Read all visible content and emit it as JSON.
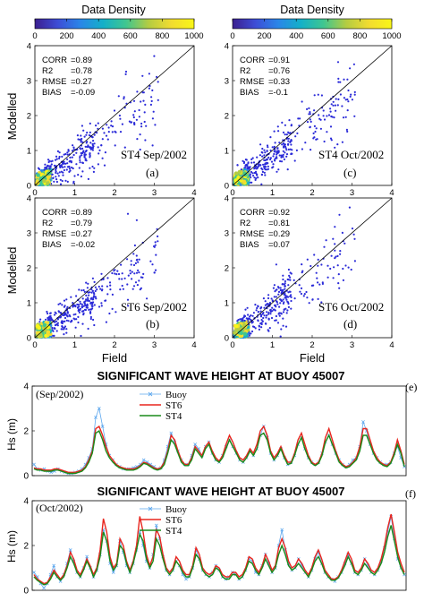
{
  "colorbars": [
    {
      "title": "Data Density",
      "ticks": [
        "0",
        "200",
        "400",
        "600",
        "800",
        "1000"
      ]
    },
    {
      "title": "Data Density",
      "ticks": [
        "0",
        "200",
        "400",
        "600",
        "800",
        "1000"
      ]
    }
  ],
  "colormap": [
    "#3b1f8f",
    "#3d4dd6",
    "#2a86e8",
    "#14b0c8",
    "#3fc690",
    "#b4cc42",
    "#f2dc30",
    "#f9f618"
  ],
  "point_color": "#2b2bd8",
  "colors": {
    "buoy": "#5ea8ee",
    "st6": "#e8261e",
    "st4": "#1a8a1a",
    "axis": "#000000"
  },
  "scatter_axis": {
    "ylabel": "Modelled",
    "xlabel": "Field",
    "ticks": [
      "0",
      "1",
      "2",
      "3",
      "4"
    ],
    "range": [
      0,
      4
    ]
  },
  "scatter_panels": [
    {
      "label": "ST4  Sep/2002",
      "letter": "(a)",
      "stats": [
        [
          "CORR",
          "=0.89"
        ],
        [
          "R2",
          "=0.78"
        ],
        [
          "RMSE",
          "=0.27"
        ],
        [
          "BIAS",
          "=-0.09"
        ]
      ]
    },
    {
      "label": "ST4  Oct/2002",
      "letter": "(c)",
      "stats": [
        [
          "CORR",
          "=0.91"
        ],
        [
          "R2",
          "=0.76"
        ],
        [
          "RMSE",
          "=0.33"
        ],
        [
          "BIAS",
          "=-0.1"
        ]
      ]
    },
    {
      "label": "ST6 Sep/2002",
      "letter": "(b)",
      "stats": [
        [
          "CORR",
          "=0.89"
        ],
        [
          "R2",
          "=0.79"
        ],
        [
          "RMSE",
          "=0.27"
        ],
        [
          "BIAS",
          "=-0.02"
        ]
      ]
    },
    {
      "label": "ST6 Oct/2002",
      "letter": "(d)",
      "stats": [
        [
          "CORR",
          "=0.92"
        ],
        [
          "R2",
          "=0.81"
        ],
        [
          "RMSE",
          "=0.29"
        ],
        [
          "BIAS",
          "=0.07"
        ]
      ]
    }
  ],
  "timeseries_panels": [
    {
      "title": "SIGNIFICANT WAVE HEIGHT AT BUOY 45007",
      "period": "(Sep/2002)",
      "letter": "(e)",
      "ylabel": "Hs (m)",
      "yticks": [
        "0",
        "2",
        "4"
      ]
    },
    {
      "title": "SIGNIFICANT WAVE HEIGHT AT BUOY 45007",
      "period": "(Oct/2002)",
      "letter": "(f)",
      "ylabel": "Hs (m)",
      "yticks": [
        "0",
        "2",
        "4"
      ]
    }
  ],
  "legend": {
    "buoy": "Buoy",
    "st6": "ST6",
    "st4": "ST4"
  },
  "chart_data": [
    {
      "type": "scatter",
      "title": "ST4 Sep/2002",
      "xlabel": "",
      "ylabel": "Modelled",
      "xlim": [
        0,
        4
      ],
      "ylim": [
        0,
        4
      ],
      "reference_line": "y=x",
      "stats": {
        "CORR": 0.89,
        "R2": 0.78,
        "RMSE": 0.27,
        "BIAS": -0.09
      }
    },
    {
      "type": "scatter",
      "title": "ST4 Oct/2002",
      "xlabel": "",
      "ylabel": "",
      "xlim": [
        0,
        4
      ],
      "ylim": [
        0,
        4
      ],
      "reference_line": "y=x",
      "stats": {
        "CORR": 0.91,
        "R2": 0.76,
        "RMSE": 0.33,
        "BIAS": -0.1
      }
    },
    {
      "type": "scatter",
      "title": "ST6 Sep/2002",
      "xlabel": "Field",
      "ylabel": "Modelled",
      "xlim": [
        0,
        4
      ],
      "ylim": [
        0,
        4
      ],
      "reference_line": "y=x",
      "stats": {
        "CORR": 0.89,
        "R2": 0.79,
        "RMSE": 0.27,
        "BIAS": -0.02
      }
    },
    {
      "type": "scatter",
      "title": "ST6 Oct/2002",
      "xlabel": "Field",
      "ylabel": "",
      "xlim": [
        0,
        4
      ],
      "ylim": [
        0,
        4
      ],
      "reference_line": "y=x",
      "stats": {
        "CORR": 0.92,
        "R2": 0.81,
        "RMSE": 0.29,
        "BIAS": 0.07
      }
    },
    {
      "type": "line",
      "title": "SIGNIFICANT WAVE HEIGHT AT BUOY 45007",
      "subtitle": "(Sep/2002)",
      "ylabel": "Hs (m)",
      "ylim": [
        0,
        4
      ],
      "series": [
        {
          "name": "Buoy",
          "values": [
            0.5,
            0.3,
            0.25,
            0.3,
            0.2,
            0.15,
            0.2,
            0.3,
            0.2,
            0.15,
            0.1,
            0.1,
            0.15,
            0.2,
            0.3,
            0.5,
            0.8,
            1.2,
            2.6,
            3.0,
            2.2,
            1.4,
            0.9,
            0.7,
            0.5,
            0.4,
            0.3,
            0.3,
            0.3,
            0.35,
            0.4,
            0.5,
            0.7,
            0.6,
            0.5,
            0.4,
            0.3,
            0.35,
            0.7,
            1.3,
            1.9,
            1.5,
            1.1,
            0.7,
            0.5,
            0.5,
            0.9,
            1.4,
            1.2,
            0.9,
            1.3,
            1.5,
            1.0,
            0.7,
            0.6,
            0.9,
            1.3,
            1.6,
            1.3,
            1.0,
            0.7,
            0.6,
            0.8,
            1.1,
            0.9,
            1.2,
            1.8,
            2.2,
            1.7,
            1.0,
            0.7,
            0.9,
            1.2,
            0.8,
            0.5,
            0.6,
            0.9,
            1.4,
            1.7,
            1.2,
            0.8,
            0.6,
            0.5,
            0.6,
            1.0,
            1.5,
            1.8,
            1.4,
            1.0,
            0.7,
            0.5,
            0.4,
            0.5,
            0.7,
            0.8,
            1.3,
            2.4,
            2.0,
            1.4,
            1.0,
            0.8,
            0.6,
            0.5,
            0.5,
            0.6,
            1.0,
            1.3,
            0.8,
            0.4
          ]
        },
        {
          "name": "ST6",
          "values": [
            0.35,
            0.3,
            0.3,
            0.25,
            0.25,
            0.25,
            0.3,
            0.3,
            0.25,
            0.2,
            0.15,
            0.15,
            0.15,
            0.2,
            0.25,
            0.4,
            0.7,
            1.1,
            2.1,
            2.2,
            1.8,
            1.3,
            0.9,
            0.7,
            0.5,
            0.4,
            0.35,
            0.3,
            0.3,
            0.3,
            0.35,
            0.45,
            0.6,
            0.55,
            0.45,
            0.35,
            0.3,
            0.35,
            0.6,
            1.1,
            1.8,
            1.6,
            1.1,
            0.7,
            0.5,
            0.5,
            0.8,
            1.3,
            1.1,
            0.9,
            1.3,
            1.5,
            1.1,
            0.8,
            0.65,
            0.9,
            1.4,
            1.8,
            1.5,
            1.1,
            0.8,
            0.7,
            0.9,
            1.2,
            1.0,
            1.4,
            2.0,
            2.2,
            1.8,
            1.1,
            0.8,
            1.0,
            1.3,
            0.9,
            0.6,
            0.6,
            1.0,
            1.6,
            1.9,
            1.4,
            0.9,
            0.6,
            0.5,
            0.6,
            1.0,
            1.7,
            2.1,
            1.6,
            1.1,
            0.7,
            0.5,
            0.4,
            0.45,
            0.6,
            0.8,
            1.3,
            2.1,
            2.1,
            1.6,
            1.1,
            0.8,
            0.6,
            0.5,
            0.45,
            0.6,
            1.0,
            1.6,
            1.1,
            0.5
          ]
        },
        {
          "name": "ST4",
          "values": [
            0.3,
            0.25,
            0.25,
            0.2,
            0.2,
            0.2,
            0.25,
            0.25,
            0.2,
            0.15,
            0.1,
            0.1,
            0.1,
            0.15,
            0.2,
            0.35,
            0.6,
            1.0,
            1.9,
            2.0,
            1.6,
            1.1,
            0.8,
            0.6,
            0.45,
            0.35,
            0.3,
            0.25,
            0.25,
            0.25,
            0.3,
            0.4,
            0.55,
            0.5,
            0.4,
            0.3,
            0.25,
            0.3,
            0.5,
            1.0,
            1.6,
            1.4,
            1.0,
            0.6,
            0.45,
            0.45,
            0.7,
            1.2,
            1.0,
            0.8,
            1.2,
            1.4,
            1.0,
            0.7,
            0.6,
            0.8,
            1.2,
            1.6,
            1.3,
            1.0,
            0.7,
            0.6,
            0.8,
            1.1,
            0.9,
            1.2,
            1.8,
            1.9,
            1.6,
            1.0,
            0.7,
            0.9,
            1.2,
            0.8,
            0.5,
            0.55,
            0.9,
            1.4,
            1.7,
            1.2,
            0.8,
            0.55,
            0.45,
            0.55,
            0.9,
            1.5,
            1.8,
            1.4,
            1.0,
            0.6,
            0.45,
            0.35,
            0.4,
            0.55,
            0.7,
            1.1,
            1.8,
            1.8,
            1.4,
            1.0,
            0.7,
            0.55,
            0.45,
            0.4,
            0.55,
            0.9,
            1.4,
            1.0,
            0.4
          ]
        }
      ]
    },
    {
      "type": "line",
      "title": "SIGNIFICANT WAVE HEIGHT AT BUOY 45007",
      "subtitle": "(Oct/2002)",
      "ylabel": "Hs (m)",
      "ylim": [
        0,
        4
      ],
      "series": [
        {
          "name": "Buoy",
          "values": [
            0.8,
            0.6,
            0.3,
            0.1,
            0.3,
            0.7,
            1.1,
            0.6,
            0.4,
            0.7,
            1.2,
            1.8,
            1.3,
            0.8,
            0.6,
            1.0,
            1.5,
            1.0,
            0.6,
            0.9,
            1.6,
            2.7,
            2.2,
            1.2,
            0.8,
            1.1,
            2.2,
            1.7,
            1.1,
            0.8,
            1.2,
            1.8,
            2.6,
            2.0,
            1.3,
            1.0,
            1.6,
            2.9,
            2.3,
            1.5,
            0.9,
            0.7,
            0.9,
            1.3,
            1.1,
            0.7,
            0.5,
            0.6,
            1.0,
            1.8,
            1.4,
            0.9,
            0.7,
            0.6,
            0.8,
            1.1,
            0.9,
            0.6,
            0.5,
            0.6,
            0.8,
            0.7,
            0.5,
            0.6,
            0.9,
            1.4,
            1.3,
            0.8,
            0.7,
            1.1,
            1.6,
            1.2,
            0.8,
            1.0,
            2.0,
            2.7,
            1.8,
            1.2,
            0.9,
            1.0,
            1.4,
            1.1,
            0.8,
            0.6,
            0.9,
            1.4,
            1.7,
            1.2,
            0.8,
            0.6,
            0.5,
            0.4,
            0.6,
            0.8,
            1.2,
            1.6,
            1.2,
            0.8,
            0.7,
            0.9,
            1.4,
            1.1,
            0.8,
            0.7,
            0.9,
            1.3,
            1.9,
            2.6,
            3.3,
            2.3,
            1.4,
            1.0,
            0.7
          ]
        },
        {
          "name": "ST6",
          "values": [
            0.7,
            0.5,
            0.4,
            0.3,
            0.35,
            0.6,
            0.9,
            0.7,
            0.5,
            0.7,
            1.1,
            1.7,
            1.4,
            0.9,
            0.7,
            1.0,
            1.4,
            1.1,
            0.7,
            1.0,
            1.8,
            3.2,
            2.6,
            1.5,
            1.0,
            1.2,
            2.3,
            2.0,
            1.3,
            0.9,
            1.3,
            2.0,
            3.3,
            2.6,
            1.6,
            1.1,
            1.5,
            2.7,
            2.4,
            1.6,
            1.0,
            0.8,
            1.0,
            1.5,
            1.3,
            0.9,
            0.7,
            0.7,
            1.1,
            1.9,
            1.6,
            1.0,
            0.8,
            0.7,
            0.8,
            1.1,
            1.0,
            0.7,
            0.6,
            0.6,
            0.8,
            0.8,
            0.6,
            0.7,
            1.0,
            1.5,
            1.4,
            1.0,
            0.8,
            1.1,
            1.6,
            1.3,
            0.9,
            1.1,
            1.9,
            2.3,
            1.9,
            1.3,
            1.0,
            1.1,
            1.4,
            1.2,
            0.9,
            0.7,
            1.0,
            1.5,
            1.8,
            1.4,
            0.9,
            0.7,
            0.5,
            0.5,
            0.6,
            0.9,
            1.3,
            1.7,
            1.4,
            0.9,
            0.8,
            1.0,
            1.4,
            1.2,
            0.9,
            0.8,
            1.0,
            1.4,
            2.0,
            2.8,
            3.4,
            2.6,
            1.7,
            1.2,
            0.8
          ]
        },
        {
          "name": "ST4",
          "values": [
            0.6,
            0.45,
            0.35,
            0.25,
            0.3,
            0.5,
            0.8,
            0.6,
            0.45,
            0.6,
            1.0,
            1.5,
            1.2,
            0.8,
            0.6,
            0.9,
            1.3,
            1.0,
            0.6,
            0.9,
            1.5,
            2.6,
            2.2,
            1.3,
            0.9,
            1.1,
            2.0,
            1.8,
            1.2,
            0.8,
            1.2,
            1.8,
            2.5,
            2.2,
            1.4,
            1.0,
            1.3,
            2.3,
            2.0,
            1.4,
            0.9,
            0.7,
            0.9,
            1.3,
            1.1,
            0.8,
            0.6,
            0.6,
            1.0,
            1.6,
            1.4,
            0.9,
            0.7,
            0.6,
            0.7,
            1.0,
            0.9,
            0.6,
            0.5,
            0.5,
            0.7,
            0.7,
            0.5,
            0.6,
            0.9,
            1.3,
            1.2,
            0.9,
            0.7,
            1.0,
            1.4,
            1.1,
            0.8,
            1.0,
            1.6,
            2.0,
            1.6,
            1.1,
            0.9,
            1.0,
            1.2,
            1.0,
            0.8,
            0.6,
            0.9,
            1.3,
            1.5,
            1.2,
            0.8,
            0.6,
            0.45,
            0.45,
            0.55,
            0.8,
            1.1,
            1.5,
            1.2,
            0.8,
            0.7,
            0.9,
            1.2,
            1.0,
            0.8,
            0.7,
            0.9,
            1.2,
            1.7,
            2.4,
            2.9,
            2.2,
            1.5,
            1.0,
            0.7
          ]
        }
      ]
    }
  ]
}
